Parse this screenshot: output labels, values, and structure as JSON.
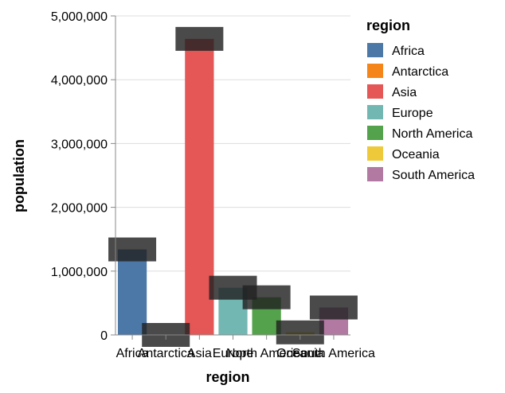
{
  "chart_data": {
    "type": "bar",
    "xlabel": "region",
    "ylabel": "population",
    "ylim": [
      0,
      5000000
    ],
    "yticks": [
      "0",
      "1,000,000",
      "2,000,000",
      "3,000,000",
      "4,000,000",
      "5,000,000"
    ],
    "ytick_values": [
      0,
      1000000,
      2000000,
      3000000,
      4000000,
      5000000
    ],
    "categories": [
      "Africa",
      "Antarctica",
      "Asia",
      "Europe",
      "North America",
      "Oceania",
      "South America"
    ],
    "values": [
      1340000,
      0,
      4640000,
      740000,
      590000,
      40000,
      430000
    ],
    "colors": [
      "#4c78a8",
      "#f58518",
      "#e45756",
      "#72b7b2",
      "#54a24b",
      "#eeca3b",
      "#b279a2"
    ],
    "grid": true,
    "legend": {
      "title": "region",
      "placement": "right",
      "entries": [
        "Africa",
        "Antarctica",
        "Asia",
        "Europe",
        "North America",
        "Oceania",
        "South America"
      ]
    }
  }
}
